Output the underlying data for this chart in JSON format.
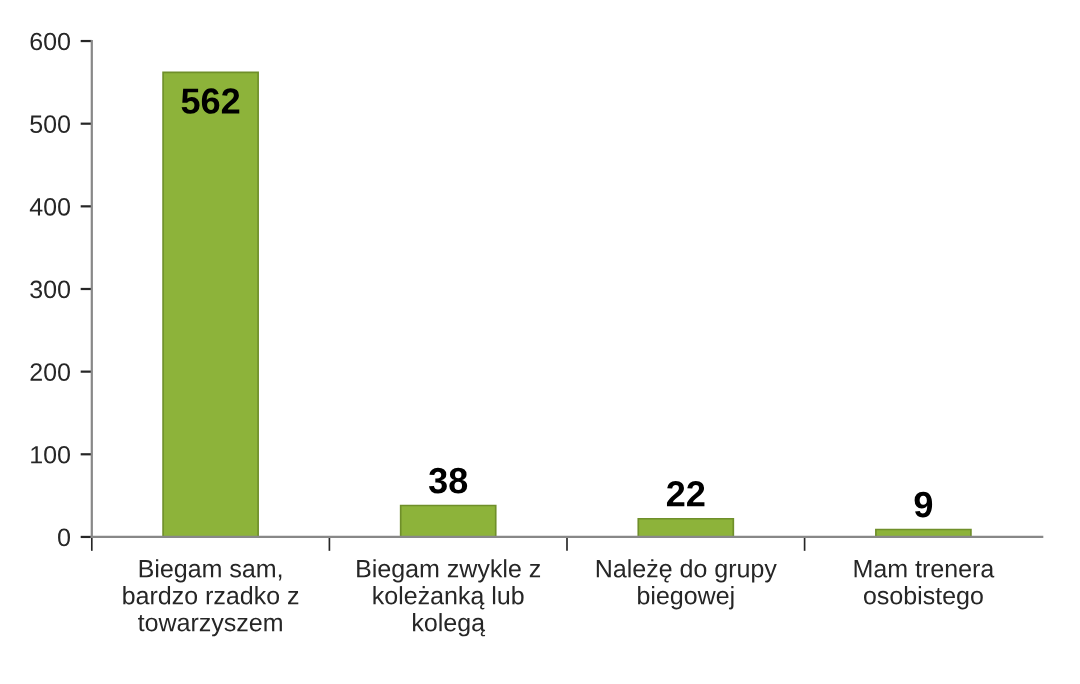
{
  "chart_data": {
    "type": "bar",
    "categories": [
      "Biegam sam, bardzo rzadko z towarzyszem",
      "Biegam zwykle z koleżanką lub kolegą",
      "Należę do grupy biegowej",
      "Mam trenera osobistego"
    ],
    "values": [
      562,
      38,
      22,
      9
    ],
    "color": "#8db33a",
    "ylim": [
      0,
      600
    ],
    "yticks": [
      0,
      100,
      200,
      300,
      400,
      500,
      600
    ],
    "grid": false,
    "data_labels": true
  }
}
